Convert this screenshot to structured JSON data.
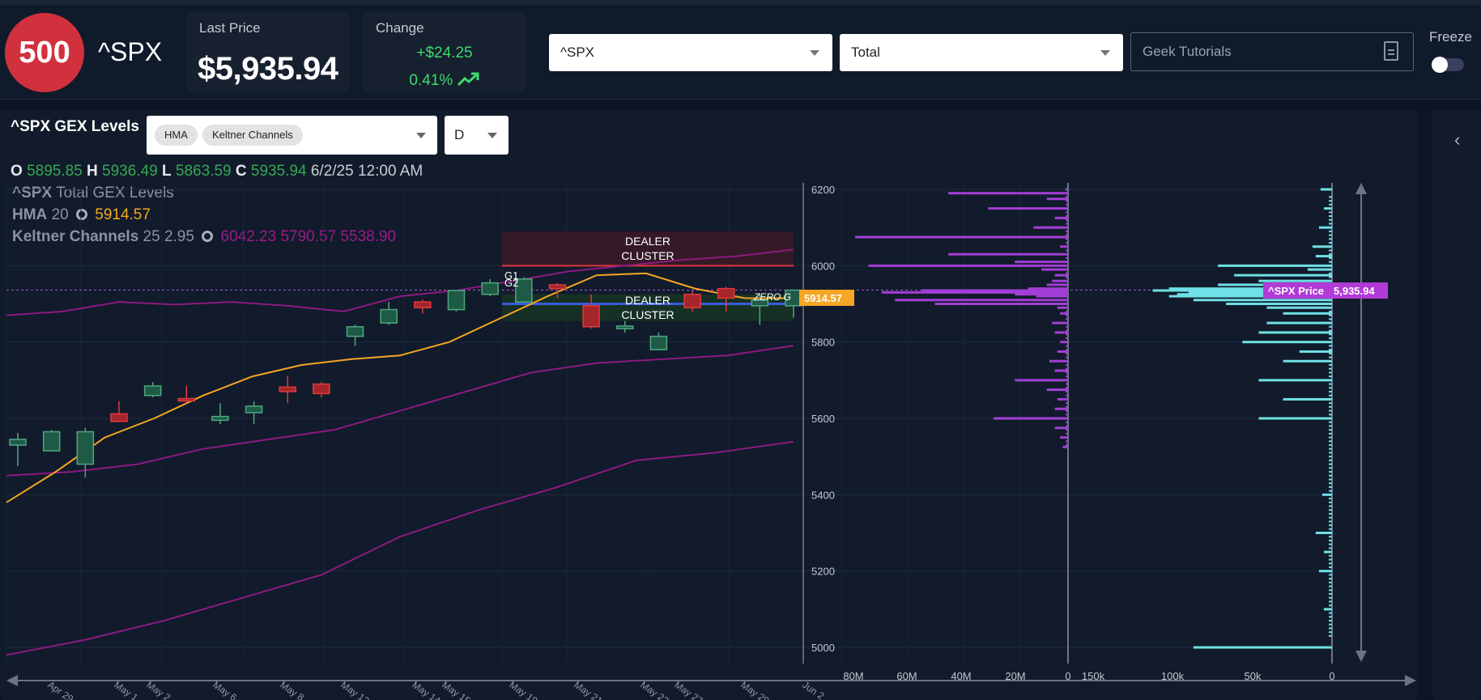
{
  "header": {
    "logo_text": "500",
    "ticker": "^SPX",
    "last_price_label": "Last Price",
    "last_price": "$5,935.94",
    "change_label": "Change",
    "change_abs": "+$24.25",
    "change_pct": "0.41%",
    "symbol_select": "^SPX",
    "type_select": "Total",
    "tutorials": "Geek Tutorials",
    "freeze_label": "Freeze",
    "freeze_on": false,
    "accent_up": "#3bdb6b",
    "logo_color": "#d1313d"
  },
  "chart": {
    "title": "^SPX GEX Levels",
    "indicators": [
      "HMA",
      "Keltner Channels"
    ],
    "period": "D",
    "ohlc": {
      "o": "5895.85",
      "h": "5936.49",
      "l": "5863.59",
      "c": "5935.94",
      "date": "6/2/25 12:00 AM"
    },
    "legend": {
      "series": "^SPX",
      "series_desc": "Total GEX Levels",
      "hma_label": "HMA",
      "hma_param": "20",
      "hma_value": "5914.57",
      "kc_label": "Keltner Channels",
      "kc_params": "25 2.95",
      "kc_values": "6042.23 5790.57 5538.90"
    },
    "annotations": {
      "dealer_top": [
        "DEALER",
        "CLUSTER"
      ],
      "dealer_bottom": [
        "DEALER",
        "CLUSTER"
      ],
      "g1": "G1",
      "g2": "G2",
      "zero_g": "ZERO G",
      "hma_tag": "5914.57",
      "price_tag_label": "^SPX Price",
      "price_tag_value": "5,935.94"
    }
  },
  "chart_data": {
    "type": "candlestick",
    "x_ticks": [
      "Apr 29",
      "May 1",
      "May 2",
      "May 6",
      "May 8",
      "May 12",
      "May 14",
      "May 15",
      "May 19",
      "May 21",
      "May 23",
      "May 27",
      "May 29",
      "Jun 2"
    ],
    "y_ticks": [
      6200,
      6000,
      5800,
      5600,
      5400,
      5200,
      5000
    ],
    "ylim": [
      4960,
      6225
    ],
    "current_price": 5935.94,
    "dealer_cluster_upper": [
      6000,
      6090
    ],
    "dealer_cluster_lower": [
      5855,
      5925
    ],
    "zero_g_level": 5900,
    "candles": [
      {
        "o": 5530,
        "c": 5545,
        "h": 5562,
        "l": 5475
      },
      {
        "o": 5515,
        "c": 5565,
        "h": 5570,
        "l": 5515
      },
      {
        "o": 5480,
        "c": 5565,
        "h": 5575,
        "l": 5445
      },
      {
        "o": 5612,
        "c": 5592,
        "h": 5645,
        "l": 5590
      },
      {
        "o": 5660,
        "c": 5685,
        "h": 5695,
        "l": 5655
      },
      {
        "o": 5652,
        "c": 5650,
        "h": 5685,
        "l": 5640
      },
      {
        "o": 5595,
        "c": 5605,
        "h": 5640,
        "l": 5585
      },
      {
        "o": 5615,
        "c": 5632,
        "h": 5645,
        "l": 5585
      },
      {
        "o": 5682,
        "c": 5670,
        "h": 5712,
        "l": 5640
      },
      {
        "o": 5690,
        "c": 5665,
        "h": 5695,
        "l": 5655
      },
      {
        "o": 5815,
        "c": 5840,
        "h": 5845,
        "l": 5790
      },
      {
        "o": 5850,
        "c": 5885,
        "h": 5905,
        "l": 5845
      },
      {
        "o": 5905,
        "c": 5890,
        "h": 5912,
        "l": 5875
      },
      {
        "o": 5885,
        "c": 5935,
        "h": 5935,
        "l": 5880
      },
      {
        "o": 5925,
        "c": 5955,
        "h": 5965,
        "l": 5920
      },
      {
        "o": 5905,
        "c": 5965,
        "h": 5970,
        "l": 5905
      },
      {
        "o": 5950,
        "c": 5940,
        "h": 5955,
        "l": 5915
      },
      {
        "o": 5895,
        "c": 5840,
        "h": 5925,
        "l": 5835
      },
      {
        "o": 5835,
        "c": 5842,
        "h": 5855,
        "l": 5825
      },
      {
        "o": 5780,
        "c": 5815,
        "h": 5825,
        "l": 5780
      },
      {
        "o": 5925,
        "c": 5890,
        "h": 5935,
        "l": 5880
      },
      {
        "o": 5940,
        "c": 5915,
        "h": 5945,
        "l": 5880
      },
      {
        "o": 5895,
        "c": 5910,
        "h": 5925,
        "l": 5845
      },
      {
        "o": 5895,
        "c": 5936,
        "h": 5936,
        "l": 5864
      }
    ],
    "hma": [
      5380,
      5460,
      5550,
      5600,
      5660,
      5710,
      5740,
      5755,
      5765,
      5800,
      5860,
      5920,
      5975,
      5980,
      5940,
      5915,
      5914.57
    ],
    "kc_upper": [
      5870,
      5880,
      5905,
      5898,
      5905,
      5895,
      5880,
      5920,
      5935,
      5960,
      5985,
      6000,
      6015,
      6025,
      6042.23
    ],
    "kc_mid": [
      5450,
      5460,
      5480,
      5520,
      5545,
      5570,
      5620,
      5670,
      5720,
      5745,
      5755,
      5765,
      5790.57
    ],
    "kc_lower": [
      4980,
      5020,
      5070,
      5130,
      5190,
      5290,
      5360,
      5420,
      5490,
      5510,
      5538.9
    ],
    "gex_strikes": [
      6200,
      6190,
      6175,
      6150,
      6125,
      6100,
      6075,
      6050,
      6030,
      6010,
      6000,
      5990,
      5975,
      5960,
      5950,
      5940,
      5935,
      5930,
      5925,
      5920,
      5910,
      5900,
      5890,
      5875,
      5850,
      5825,
      5800,
      5775,
      5750,
      5725,
      5700,
      5675,
      5650,
      5625,
      5600,
      5575,
      5550,
      5525
    ],
    "gex_values_m": [
      -1,
      -45,
      -8,
      -30,
      -5,
      -13,
      -80,
      -3,
      -45,
      -20,
      -75,
      -10,
      -5,
      -6,
      -8,
      -15,
      -55,
      -70,
      -20,
      -12,
      -65,
      -50,
      -4,
      -3,
      -6,
      -5,
      -3,
      -4,
      -7,
      -5,
      -20,
      -8,
      -4,
      -5,
      -28,
      -5,
      -3,
      -2
    ],
    "oi_strikes": [
      6200,
      6150,
      6100,
      6050,
      6025,
      6000,
      5990,
      5975,
      5960,
      5950,
      5940,
      5935,
      5930,
      5925,
      5920,
      5910,
      5900,
      5890,
      5875,
      5850,
      5825,
      5800,
      5775,
      5750,
      5700,
      5650,
      5600,
      5400,
      5300,
      5250,
      5200,
      5100,
      5000
    ],
    "oi_values_k": [
      7,
      5,
      8,
      12,
      10,
      70,
      15,
      60,
      45,
      70,
      100,
      110,
      88,
      95,
      100,
      85,
      65,
      40,
      30,
      40,
      45,
      55,
      20,
      30,
      45,
      30,
      45,
      6,
      10,
      5,
      8,
      5,
      85
    ]
  }
}
